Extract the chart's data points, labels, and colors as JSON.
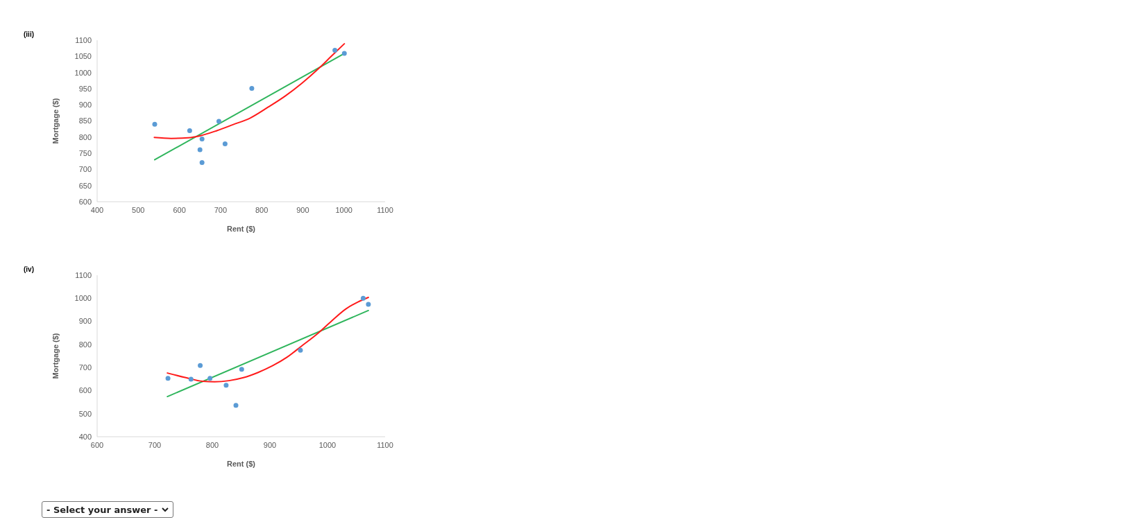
{
  "chart_data": [
    {
      "type": "scatter",
      "title": "(iii)",
      "xlabel": "Rent ($)",
      "ylabel": "Mortgage ($)",
      "xlim": [
        400,
        1100
      ],
      "xticks": [
        400,
        500,
        600,
        700,
        800,
        900,
        1000,
        1100
      ],
      "ylim": [
        600,
        1100
      ],
      "yticks": [
        600,
        650,
        700,
        750,
        800,
        850,
        900,
        950,
        1000,
        1050,
        1100
      ],
      "marker": "circle",
      "series": [
        {
          "color": "#5b9bd5",
          "x": [
            540,
            625,
            655,
            650,
            655,
            696,
            711,
            776,
            978,
            1001
          ],
          "values": [
            840,
            820,
            794,
            761,
            721,
            849,
            779,
            951,
            1069,
            1059
          ]
        },
        {
          "type": "line",
          "color": "#2fb55c",
          "marker": "none",
          "line_style": "solid",
          "x": [
            540,
            1001
          ],
          "values": [
            730,
            1059
          ]
        },
        {
          "type": "line",
          "color": "#ff1a1a",
          "marker": "none",
          "line_style": "solid",
          "x": [
            539,
            580,
            621,
            650,
            691,
            731,
            772,
            816,
            857,
            898,
            940,
            969,
            1001
          ],
          "values": [
            799,
            796,
            798,
            804,
            820,
            839,
            859,
            893,
            927,
            967,
            1014,
            1050,
            1089
          ]
        }
      ]
    },
    {
      "type": "scatter",
      "title": "(iv)",
      "xlabel": "Rent ($)",
      "ylabel": "Mortgage ($)",
      "xlim": [
        600,
        1100
      ],
      "xticks": [
        600,
        700,
        800,
        900,
        1000,
        1100
      ],
      "ylim": [
        400,
        1100
      ],
      "yticks": [
        400,
        500,
        600,
        700,
        800,
        900,
        1000,
        1100
      ],
      "marker": "circle",
      "annotations": [
        "- Select your answer -"
      ],
      "series": [
        {
          "color": "#5b9bd5",
          "x": [
            723,
            763,
            779,
            796,
            824,
            841,
            851,
            953,
            1062,
            1071
          ],
          "values": [
            653,
            649,
            709,
            653,
            623,
            536,
            692,
            775,
            1000,
            974
          ]
        },
        {
          "type": "line",
          "color": "#2fb55c",
          "marker": "none",
          "line_style": "solid",
          "x": [
            722,
            1071
          ],
          "values": [
            574,
            947
          ]
        },
        {
          "type": "line",
          "color": "#ff1a1a",
          "marker": "none",
          "line_style": "solid",
          "x": [
            722,
            754,
            783,
            804,
            829,
            854,
            879,
            905,
            930,
            955,
            981,
            1006,
            1032,
            1053,
            1071
          ],
          "values": [
            676,
            656,
            640,
            638,
            643,
            656,
            678,
            708,
            745,
            793,
            843,
            899,
            954,
            984,
            1004
          ]
        }
      ]
    }
  ]
}
